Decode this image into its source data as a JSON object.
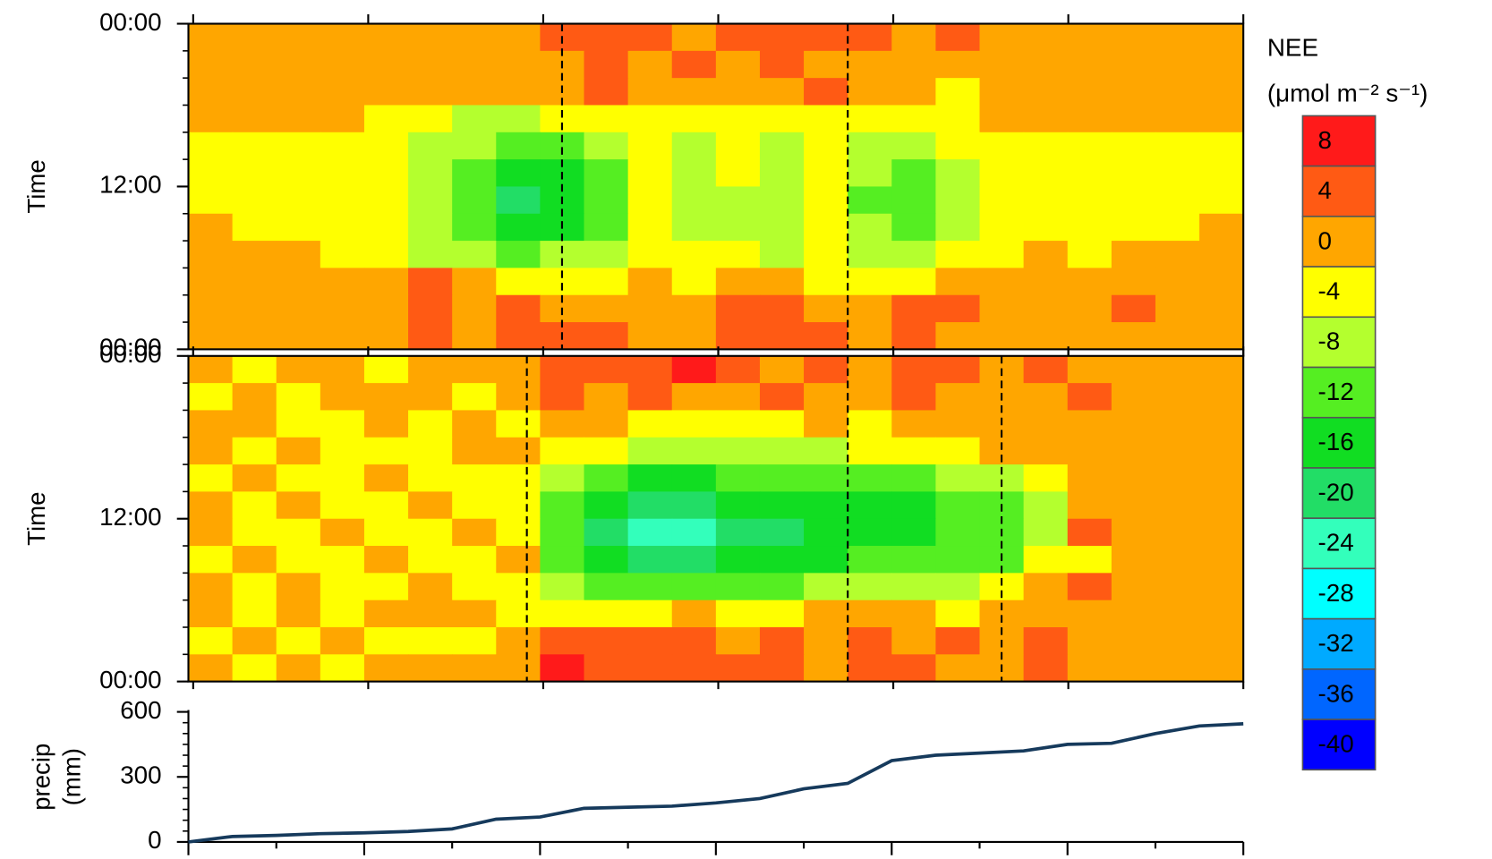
{
  "chart_data": [
    {
      "type": "heatmap",
      "ylabel": "Time",
      "ylim": [
        0,
        24
      ],
      "yticks": [
        {
          "value": 0,
          "label": "00:00"
        },
        {
          "value": 12,
          "label": "12:00"
        },
        {
          "value": 24,
          "label": "00:00"
        }
      ],
      "vlines": [
        8.5,
        15
      ],
      "colorbar": {
        "title": "NEE",
        "units": "(μmol m⁻² s⁻¹)",
        "levels": [
          {
            "value": 8,
            "color": "#ff1a1a"
          },
          {
            "value": 4,
            "color": "#ff5a14"
          },
          {
            "value": 0,
            "color": "#ffa600"
          },
          {
            "value": -4,
            "color": "#ffff00"
          },
          {
            "value": -8,
            "color": "#b4ff2e"
          },
          {
            "value": -12,
            "color": "#55ee22"
          },
          {
            "value": -16,
            "color": "#11dd22"
          },
          {
            "value": -20,
            "color": "#22dd66"
          },
          {
            "value": -24,
            "color": "#33ffbb"
          },
          {
            "value": -28,
            "color": "#00ffff"
          },
          {
            "value": -32,
            "color": "#00aaff"
          },
          {
            "value": -36,
            "color": "#0066ff"
          },
          {
            "value": -40,
            "color": "#0000ff"
          }
        ]
      },
      "values": [
        [
          0,
          0,
          0,
          0,
          0,
          0,
          0,
          0,
          4,
          4,
          4,
          0,
          4,
          4,
          4,
          4,
          0,
          4,
          0,
          0,
          0,
          0,
          0,
          0
        ],
        [
          0,
          0,
          0,
          0,
          0,
          0,
          0,
          0,
          0,
          4,
          0,
          4,
          0,
          4,
          0,
          0,
          0,
          0,
          0,
          0,
          0,
          0,
          0,
          0
        ],
        [
          0,
          0,
          0,
          0,
          0,
          0,
          0,
          0,
          0,
          4,
          0,
          0,
          0,
          0,
          4,
          0,
          0,
          -4,
          0,
          0,
          0,
          0,
          0,
          0
        ],
        [
          0,
          0,
          0,
          0,
          -4,
          -4,
          -8,
          -8,
          -4,
          -4,
          -4,
          -4,
          -4,
          -4,
          -4,
          -4,
          -4,
          -4,
          0,
          0,
          0,
          0,
          0,
          0
        ],
        [
          -4,
          -4,
          -4,
          -4,
          -4,
          -8,
          -8,
          -12,
          -12,
          -8,
          -4,
          -8,
          -4,
          -8,
          -4,
          -8,
          -8,
          -4,
          -4,
          -4,
          -4,
          -4,
          -4,
          -4
        ],
        [
          -4,
          -4,
          -4,
          -4,
          -4,
          -8,
          -12,
          -16,
          -16,
          -12,
          -4,
          -8,
          -4,
          -8,
          -4,
          -8,
          -12,
          -8,
          -4,
          -4,
          -4,
          -4,
          -4,
          -4
        ],
        [
          -4,
          -4,
          -4,
          -4,
          -4,
          -8,
          -12,
          -20,
          -16,
          -12,
          -4,
          -8,
          -8,
          -8,
          -4,
          -12,
          -12,
          -8,
          -4,
          -4,
          -4,
          -4,
          -4,
          -4
        ],
        [
          0,
          -4,
          -4,
          -4,
          -4,
          -8,
          -12,
          -16,
          -16,
          -12,
          -4,
          -8,
          -8,
          -8,
          -4,
          -8,
          -12,
          -8,
          -4,
          -4,
          -4,
          -4,
          -4,
          0
        ],
        [
          0,
          0,
          0,
          -4,
          -4,
          -8,
          -8,
          -12,
          -8,
          -8,
          -4,
          -4,
          -4,
          -8,
          -4,
          -8,
          -8,
          -4,
          -4,
          0,
          -4,
          0,
          0,
          0
        ],
        [
          0,
          0,
          0,
          0,
          0,
          4,
          0,
          -4,
          -4,
          -4,
          0,
          -4,
          0,
          0,
          -4,
          -4,
          -4,
          0,
          0,
          0,
          0,
          0,
          0,
          0
        ],
        [
          0,
          0,
          0,
          0,
          0,
          4,
          0,
          4,
          0,
          0,
          0,
          0,
          4,
          4,
          0,
          0,
          4,
          4,
          0,
          0,
          0,
          4,
          0,
          0
        ],
        [
          0,
          0,
          0,
          0,
          0,
          4,
          0,
          4,
          4,
          4,
          0,
          0,
          4,
          4,
          4,
          0,
          4,
          0,
          0,
          0,
          0,
          0,
          0,
          0
        ]
      ]
    },
    {
      "type": "heatmap",
      "ylabel": "Time",
      "ylim": [
        0,
        24
      ],
      "yticks": [
        {
          "value": 0,
          "label": "00:00"
        },
        {
          "value": 12,
          "label": "12:00"
        },
        {
          "value": 24,
          "label": "00:00"
        }
      ],
      "vlines": [
        7.7,
        15,
        18.5
      ],
      "values": [
        [
          0,
          -4,
          0,
          0,
          -4,
          0,
          0,
          0,
          4,
          4,
          4,
          8,
          4,
          0,
          4,
          0,
          4,
          4,
          0,
          4,
          0,
          0,
          0,
          0
        ],
        [
          -4,
          0,
          -4,
          0,
          0,
          0,
          -4,
          0,
          4,
          0,
          4,
          0,
          0,
          4,
          0,
          0,
          4,
          0,
          0,
          0,
          4,
          0,
          0,
          0
        ],
        [
          0,
          0,
          -4,
          -4,
          0,
          -4,
          0,
          -4,
          0,
          0,
          -4,
          -4,
          -4,
          -4,
          0,
          -4,
          0,
          0,
          0,
          0,
          0,
          0,
          0,
          0
        ],
        [
          0,
          -4,
          0,
          -4,
          -4,
          -4,
          0,
          0,
          -4,
          -4,
          -8,
          -8,
          -8,
          -8,
          -8,
          -4,
          -4,
          -4,
          0,
          0,
          0,
          0,
          0,
          0
        ],
        [
          -4,
          0,
          -4,
          -4,
          0,
          -4,
          -4,
          -4,
          -8,
          -12,
          -16,
          -16,
          -12,
          -12,
          -12,
          -12,
          -12,
          -8,
          -8,
          -4,
          0,
          0,
          0,
          0
        ],
        [
          0,
          -4,
          0,
          -4,
          -4,
          0,
          -4,
          -4,
          -12,
          -16,
          -20,
          -20,
          -16,
          -16,
          -16,
          -16,
          -16,
          -12,
          -12,
          -8,
          0,
          0,
          0,
          0
        ],
        [
          0,
          -4,
          -4,
          0,
          -4,
          -4,
          0,
          -4,
          -12,
          -20,
          -24,
          -24,
          -20,
          -20,
          -16,
          -16,
          -16,
          -12,
          -12,
          -8,
          4,
          0,
          0,
          0
        ],
        [
          -4,
          0,
          -4,
          -4,
          0,
          -4,
          -4,
          0,
          -12,
          -16,
          -20,
          -20,
          -16,
          -16,
          -16,
          -12,
          -12,
          -12,
          -12,
          -4,
          -4,
          0,
          0,
          0
        ],
        [
          0,
          -4,
          0,
          -4,
          -4,
          0,
          -4,
          -4,
          -8,
          -12,
          -12,
          -12,
          -12,
          -12,
          -8,
          -8,
          -8,
          -8,
          -4,
          0,
          4,
          0,
          0,
          0
        ],
        [
          0,
          -4,
          0,
          -4,
          0,
          0,
          0,
          -4,
          -4,
          -4,
          -4,
          0,
          -4,
          -4,
          0,
          0,
          0,
          -4,
          0,
          0,
          0,
          0,
          0,
          0
        ],
        [
          -4,
          0,
          -4,
          0,
          -4,
          -4,
          -4,
          0,
          4,
          4,
          4,
          4,
          0,
          4,
          0,
          4,
          0,
          4,
          0,
          4,
          0,
          0,
          0,
          0
        ],
        [
          0,
          -4,
          0,
          -4,
          0,
          0,
          0,
          0,
          8,
          4,
          4,
          4,
          4,
          4,
          0,
          4,
          4,
          0,
          0,
          4,
          0,
          0,
          0,
          0
        ]
      ]
    },
    {
      "type": "line",
      "ylabel": [
        "precip",
        "(mm)"
      ],
      "color": "#163a5c",
      "ylim": [
        0,
        600
      ],
      "yticks": [
        0,
        300,
        600
      ],
      "values": [
        0,
        25,
        30,
        38,
        42,
        48,
        60,
        105,
        115,
        155,
        160,
        165,
        180,
        200,
        245,
        270,
        375,
        400,
        410,
        420,
        450,
        455,
        500,
        535,
        545
      ]
    }
  ]
}
